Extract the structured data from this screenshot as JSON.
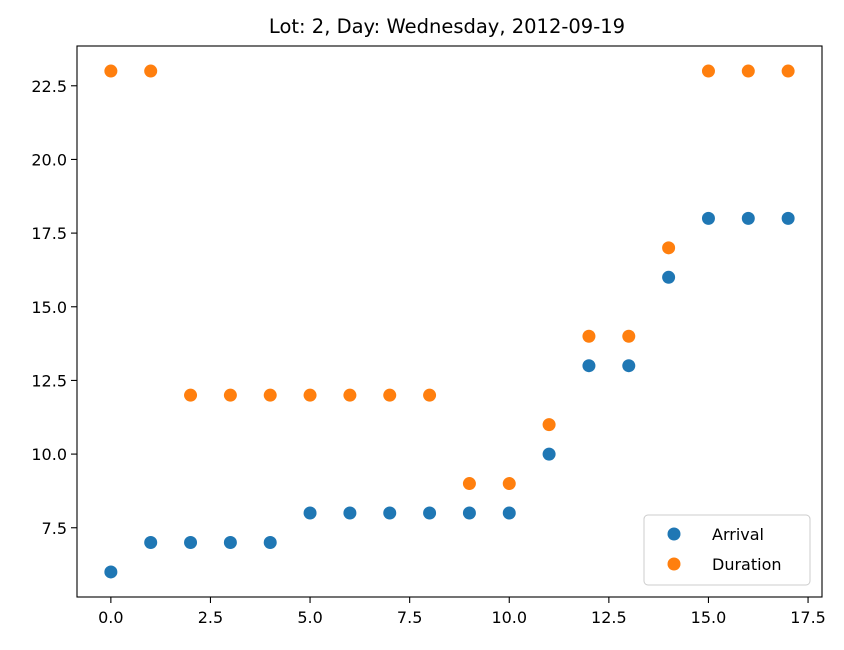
{
  "chart_data": {
    "type": "scatter",
    "title": "Lot: 2, Day: Wednesday, 2012-09-19",
    "xlabel": "",
    "ylabel": "",
    "xlim": [
      -0.85,
      17.85
    ],
    "ylim": [
      5.15,
      23.85
    ],
    "xticks": [
      0.0,
      2.5,
      5.0,
      7.5,
      10.0,
      12.5,
      15.0,
      17.5
    ],
    "xtick_labels": [
      "0.0",
      "2.5",
      "5.0",
      "7.5",
      "10.0",
      "12.5",
      "15.0",
      "17.5"
    ],
    "yticks": [
      7.5,
      10.0,
      12.5,
      15.0,
      17.5,
      20.0,
      22.5
    ],
    "ytick_labels": [
      "7.5",
      "10.0",
      "12.5",
      "15.0",
      "17.5",
      "20.0",
      "22.5"
    ],
    "grid": false,
    "legend_position": "bottom-right",
    "series": [
      {
        "name": "Arrival",
        "color": "#1f77b4",
        "x": [
          0,
          1,
          2,
          3,
          4,
          5,
          6,
          7,
          8,
          9,
          10,
          11,
          12,
          13,
          14,
          15,
          16,
          17
        ],
        "y": [
          6,
          7,
          7,
          7,
          7,
          8,
          8,
          8,
          8,
          8,
          8,
          10,
          13,
          13,
          16,
          18,
          18,
          18
        ]
      },
      {
        "name": "Duration",
        "color": "#ff7f0e",
        "x": [
          0,
          1,
          2,
          3,
          4,
          5,
          6,
          7,
          8,
          9,
          10,
          11,
          12,
          13,
          14,
          15,
          16,
          17
        ],
        "y": [
          23,
          23,
          12,
          12,
          12,
          12,
          12,
          12,
          12,
          9,
          9,
          11,
          14,
          14,
          17,
          23,
          23,
          23
        ]
      }
    ]
  }
}
